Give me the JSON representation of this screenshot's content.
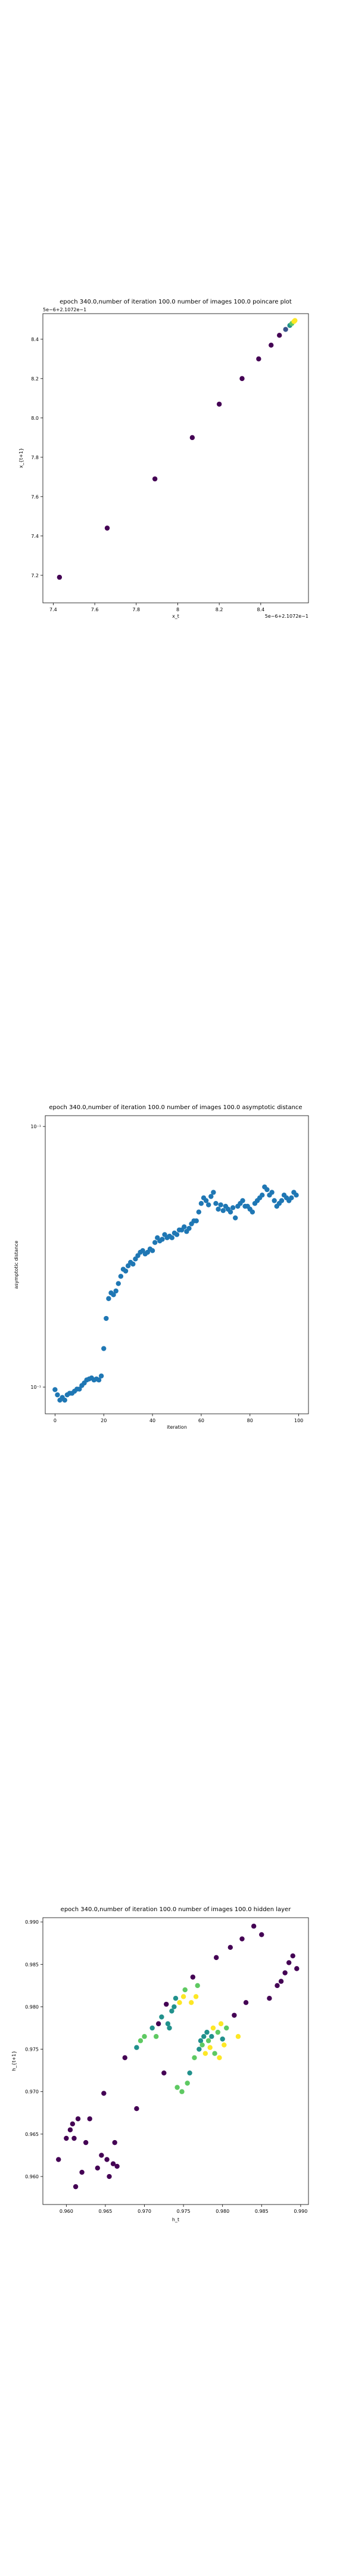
{
  "chart_data": [
    {
      "type": "scatter",
      "title": "epoch 340.0,number of iteration 100.0 number of images 100.0 poincare plot",
      "xlabel": "x_t",
      "ylabel": "x_{t+1}",
      "x_offset_label": "5e−6+2.1072e−1",
      "y_offset_label": "5e−6+2.1072e−1",
      "xlim": [
        7.35,
        8.63
      ],
      "ylim": [
        7.06,
        8.53
      ],
      "xticks": [
        7.4,
        7.6,
        7.8,
        8.0,
        8.2,
        8.4
      ],
      "yticks": [
        7.2,
        7.4,
        7.6,
        7.8,
        8.0,
        8.2,
        8.4
      ],
      "points": [
        {
          "x": 7.43,
          "y": 7.19,
          "color": "#440154"
        },
        {
          "x": 7.66,
          "y": 7.44,
          "color": "#440154"
        },
        {
          "x": 7.89,
          "y": 7.69,
          "color": "#440154"
        },
        {
          "x": 8.07,
          "y": 7.9,
          "color": "#440154"
        },
        {
          "x": 8.2,
          "y": 8.07,
          "color": "#440154"
        },
        {
          "x": 8.31,
          "y": 8.2,
          "color": "#440154"
        },
        {
          "x": 8.39,
          "y": 8.3,
          "color": "#440154"
        },
        {
          "x": 8.45,
          "y": 8.37,
          "color": "#440154"
        },
        {
          "x": 8.49,
          "y": 8.42,
          "color": "#440154"
        },
        {
          "x": 8.52,
          "y": 8.45,
          "color": "#3b528b"
        },
        {
          "x": 8.54,
          "y": 8.47,
          "color": "#21918c"
        },
        {
          "x": 8.55,
          "y": 8.48,
          "color": "#5ec962"
        },
        {
          "x": 8.56,
          "y": 8.49,
          "color": "#fde725"
        },
        {
          "x": 8.565,
          "y": 8.495,
          "color": "#fde725"
        }
      ]
    },
    {
      "type": "scatter",
      "title": "epoch 340.0,number of iteration 100.0  number of images 100.0 asymptotic distance",
      "xlabel": "iteration",
      "ylabel": "asymptotic distance",
      "yscale": "log",
      "xlim": [
        -4,
        104
      ],
      "ylim": [
        0.055,
        0.145
      ],
      "xticks": [
        0,
        20,
        40,
        60,
        80,
        100
      ],
      "yticks": [
        0.06,
        0.14
      ],
      "ytick_labels": [
        "10⁻¹",
        "10⁻¹"
      ],
      "color": "#1f77b4",
      "points": [
        {
          "x": 0,
          "y": 0.0595
        },
        {
          "x": 1,
          "y": 0.0585
        },
        {
          "x": 2,
          "y": 0.0575
        },
        {
          "x": 3,
          "y": 0.058
        },
        {
          "x": 4,
          "y": 0.0575
        },
        {
          "x": 5,
          "y": 0.0585
        },
        {
          "x": 6,
          "y": 0.0588
        },
        {
          "x": 7,
          "y": 0.0588
        },
        {
          "x": 8,
          "y": 0.0592
        },
        {
          "x": 9,
          "y": 0.0596
        },
        {
          "x": 10,
          "y": 0.0596
        },
        {
          "x": 11,
          "y": 0.0603
        },
        {
          "x": 12,
          "y": 0.0608
        },
        {
          "x": 13,
          "y": 0.0614
        },
        {
          "x": 14,
          "y": 0.0616
        },
        {
          "x": 15,
          "y": 0.0618
        },
        {
          "x": 16,
          "y": 0.0614
        },
        {
          "x": 17,
          "y": 0.0616
        },
        {
          "x": 18,
          "y": 0.0614
        },
        {
          "x": 19,
          "y": 0.0622
        },
        {
          "x": 20,
          "y": 0.068
        },
        {
          "x": 21,
          "y": 0.075
        },
        {
          "x": 22,
          "y": 0.08
        },
        {
          "x": 23,
          "y": 0.0815
        },
        {
          "x": 24,
          "y": 0.081
        },
        {
          "x": 25,
          "y": 0.082
        },
        {
          "x": 26,
          "y": 0.084
        },
        {
          "x": 27,
          "y": 0.086
        },
        {
          "x": 28,
          "y": 0.088
        },
        {
          "x": 29,
          "y": 0.0875
        },
        {
          "x": 30,
          "y": 0.089
        },
        {
          "x": 31,
          "y": 0.09
        },
        {
          "x": 32,
          "y": 0.0895
        },
        {
          "x": 33,
          "y": 0.091
        },
        {
          "x": 34,
          "y": 0.092
        },
        {
          "x": 35,
          "y": 0.093
        },
        {
          "x": 36,
          "y": 0.0935
        },
        {
          "x": 37,
          "y": 0.0925
        },
        {
          "x": 38,
          "y": 0.093
        },
        {
          "x": 39,
          "y": 0.094
        },
        {
          "x": 40,
          "y": 0.0935
        },
        {
          "x": 41,
          "y": 0.096
        },
        {
          "x": 42,
          "y": 0.0975
        },
        {
          "x": 43,
          "y": 0.0965
        },
        {
          "x": 44,
          "y": 0.097
        },
        {
          "x": 45,
          "y": 0.0985
        },
        {
          "x": 46,
          "y": 0.0975
        },
        {
          "x": 47,
          "y": 0.098
        },
        {
          "x": 48,
          "y": 0.0975
        },
        {
          "x": 49,
          "y": 0.099
        },
        {
          "x": 50,
          "y": 0.0985
        },
        {
          "x": 51,
          "y": 0.1
        },
        {
          "x": 52,
          "y": 0.1
        },
        {
          "x": 53,
          "y": 0.101
        },
        {
          "x": 54,
          "y": 0.0995
        },
        {
          "x": 55,
          "y": 0.1005
        },
        {
          "x": 56,
          "y": 0.102
        },
        {
          "x": 57,
          "y": 0.103
        },
        {
          "x": 58,
          "y": 0.103
        },
        {
          "x": 59,
          "y": 0.106
        },
        {
          "x": 60,
          "y": 0.109
        },
        {
          "x": 61,
          "y": 0.111
        },
        {
          "x": 62,
          "y": 0.11
        },
        {
          "x": 63,
          "y": 0.1085
        },
        {
          "x": 64,
          "y": 0.1115
        },
        {
          "x": 65,
          "y": 0.113
        },
        {
          "x": 66,
          "y": 0.109
        },
        {
          "x": 67,
          "y": 0.107
        },
        {
          "x": 68,
          "y": 0.1085
        },
        {
          "x": 69,
          "y": 0.1065
        },
        {
          "x": 70,
          "y": 0.108
        },
        {
          "x": 71,
          "y": 0.107
        },
        {
          "x": 72,
          "y": 0.106
        },
        {
          "x": 73,
          "y": 0.1075
        },
        {
          "x": 74,
          "y": 0.104
        },
        {
          "x": 75,
          "y": 0.108
        },
        {
          "x": 76,
          "y": 0.109
        },
        {
          "x": 77,
          "y": 0.11
        },
        {
          "x": 78,
          "y": 0.108
        },
        {
          "x": 79,
          "y": 0.108
        },
        {
          "x": 80,
          "y": 0.107
        },
        {
          "x": 81,
          "y": 0.106
        },
        {
          "x": 82,
          "y": 0.109
        },
        {
          "x": 83,
          "y": 0.11
        },
        {
          "x": 84,
          "y": 0.111
        },
        {
          "x": 85,
          "y": 0.112
        },
        {
          "x": 86,
          "y": 0.115
        },
        {
          "x": 87,
          "y": 0.114
        },
        {
          "x": 88,
          "y": 0.112
        },
        {
          "x": 89,
          "y": 0.113
        },
        {
          "x": 90,
          "y": 0.11
        },
        {
          "x": 91,
          "y": 0.108
        },
        {
          "x": 92,
          "y": 0.109
        },
        {
          "x": 93,
          "y": 0.11
        },
        {
          "x": 94,
          "y": 0.112
        },
        {
          "x": 95,
          "y": 0.111
        },
        {
          "x": 96,
          "y": 0.11
        },
        {
          "x": 97,
          "y": 0.111
        },
        {
          "x": 98,
          "y": 0.113
        },
        {
          "x": 99,
          "y": 0.112
        }
      ]
    },
    {
      "type": "scatter",
      "title": "epoch 340.0,number of iteration 100.0  number of images 100.0 hidden layer",
      "xlabel": "h_t",
      "ylabel": "h_{t+1}",
      "xlim": [
        0.957,
        0.991
      ],
      "ylim": [
        0.9567,
        0.9905
      ],
      "xticks": [
        0.96,
        0.965,
        0.97,
        0.975,
        0.98,
        0.985,
        0.99
      ],
      "yticks": [
        0.96,
        0.965,
        0.97,
        0.975,
        0.98,
        0.985,
        0.99
      ],
      "tick_labels": [
        "0.960",
        "0.965",
        "0.970",
        "0.975",
        "0.980",
        "0.985",
        "0.990"
      ],
      "points": [
        {
          "x": 0.959,
          "y": 0.962,
          "color": "#440154"
        },
        {
          "x": 0.96,
          "y": 0.9645,
          "color": "#440154"
        },
        {
          "x": 0.9605,
          "y": 0.9655,
          "color": "#440154"
        },
        {
          "x": 0.9608,
          "y": 0.9662,
          "color": "#440154"
        },
        {
          "x": 0.961,
          "y": 0.9645,
          "color": "#440154"
        },
        {
          "x": 0.9612,
          "y": 0.9588,
          "color": "#440154"
        },
        {
          "x": 0.9615,
          "y": 0.9668,
          "color": "#440154"
        },
        {
          "x": 0.962,
          "y": 0.9605,
          "color": "#440154"
        },
        {
          "x": 0.9625,
          "y": 0.964,
          "color": "#440154"
        },
        {
          "x": 0.963,
          "y": 0.9668,
          "color": "#440154"
        },
        {
          "x": 0.964,
          "y": 0.961,
          "color": "#440154"
        },
        {
          "x": 0.9645,
          "y": 0.9625,
          "color": "#440154"
        },
        {
          "x": 0.9648,
          "y": 0.9698,
          "color": "#440154"
        },
        {
          "x": 0.9652,
          "y": 0.962,
          "color": "#440154"
        },
        {
          "x": 0.9655,
          "y": 0.96,
          "color": "#440154"
        },
        {
          "x": 0.966,
          "y": 0.9615,
          "color": "#440154"
        },
        {
          "x": 0.9662,
          "y": 0.964,
          "color": "#440154"
        },
        {
          "x": 0.9665,
          "y": 0.9612,
          "color": "#440154"
        },
        {
          "x": 0.9675,
          "y": 0.974,
          "color": "#440154"
        },
        {
          "x": 0.969,
          "y": 0.968,
          "color": "#440154"
        },
        {
          "x": 0.969,
          "y": 0.9752,
          "color": "#21918c"
        },
        {
          "x": 0.9695,
          "y": 0.976,
          "color": "#5ec962"
        },
        {
          "x": 0.97,
          "y": 0.9765,
          "color": "#5ec962"
        },
        {
          "x": 0.971,
          "y": 0.9775,
          "color": "#21918c"
        },
        {
          "x": 0.9715,
          "y": 0.9765,
          "color": "#5ec962"
        },
        {
          "x": 0.9718,
          "y": 0.978,
          "color": "#440154"
        },
        {
          "x": 0.9722,
          "y": 0.9788,
          "color": "#21918c"
        },
        {
          "x": 0.9725,
          "y": 0.9722,
          "color": "#440154"
        },
        {
          "x": 0.9728,
          "y": 0.9803,
          "color": "#440154"
        },
        {
          "x": 0.973,
          "y": 0.978,
          "color": "#21918c"
        },
        {
          "x": 0.9732,
          "y": 0.9775,
          "color": "#21918c"
        },
        {
          "x": 0.9735,
          "y": 0.9795,
          "color": "#21918c"
        },
        {
          "x": 0.9738,
          "y": 0.98,
          "color": "#21918c"
        },
        {
          "x": 0.974,
          "y": 0.981,
          "color": "#21918c"
        },
        {
          "x": 0.9742,
          "y": 0.9705,
          "color": "#5ec962"
        },
        {
          "x": 0.9745,
          "y": 0.9805,
          "color": "#fde725"
        },
        {
          "x": 0.9748,
          "y": 0.97,
          "color": "#5ec962"
        },
        {
          "x": 0.975,
          "y": 0.9812,
          "color": "#fde725"
        },
        {
          "x": 0.9752,
          "y": 0.982,
          "color": "#5ec962"
        },
        {
          "x": 0.9755,
          "y": 0.971,
          "color": "#5ec962"
        },
        {
          "x": 0.9758,
          "y": 0.9722,
          "color": "#21918c"
        },
        {
          "x": 0.976,
          "y": 0.9805,
          "color": "#fde725"
        },
        {
          "x": 0.9762,
          "y": 0.9835,
          "color": "#440154"
        },
        {
          "x": 0.9764,
          "y": 0.974,
          "color": "#5ec962"
        },
        {
          "x": 0.9766,
          "y": 0.9812,
          "color": "#fde725"
        },
        {
          "x": 0.9768,
          "y": 0.9825,
          "color": "#5ec962"
        },
        {
          "x": 0.977,
          "y": 0.975,
          "color": "#21918c"
        },
        {
          "x": 0.9772,
          "y": 0.976,
          "color": "#21918c"
        },
        {
          "x": 0.9774,
          "y": 0.9755,
          "color": "#5ec962"
        },
        {
          "x": 0.9776,
          "y": 0.9765,
          "color": "#21918c"
        },
        {
          "x": 0.9778,
          "y": 0.9745,
          "color": "#fde725"
        },
        {
          "x": 0.978,
          "y": 0.977,
          "color": "#21918c"
        },
        {
          "x": 0.9782,
          "y": 0.976,
          "color": "#5ec962"
        },
        {
          "x": 0.9784,
          "y": 0.9752,
          "color": "#fde725"
        },
        {
          "x": 0.9786,
          "y": 0.9765,
          "color": "#21918c"
        },
        {
          "x": 0.9788,
          "y": 0.9775,
          "color": "#fde725"
        },
        {
          "x": 0.979,
          "y": 0.9745,
          "color": "#5ec962"
        },
        {
          "x": 0.9792,
          "y": 0.9858,
          "color": "#440154"
        },
        {
          "x": 0.9794,
          "y": 0.977,
          "color": "#5ec962"
        },
        {
          "x": 0.9796,
          "y": 0.974,
          "color": "#fde725"
        },
        {
          "x": 0.9798,
          "y": 0.978,
          "color": "#fde725"
        },
        {
          "x": 0.98,
          "y": 0.9762,
          "color": "#21918c"
        },
        {
          "x": 0.9802,
          "y": 0.9755,
          "color": "#fde725"
        },
        {
          "x": 0.9805,
          "y": 0.9775,
          "color": "#5ec962"
        },
        {
          "x": 0.981,
          "y": 0.987,
          "color": "#440154"
        },
        {
          "x": 0.9815,
          "y": 0.979,
          "color": "#440154"
        },
        {
          "x": 0.982,
          "y": 0.9765,
          "color": "#fde725"
        },
        {
          "x": 0.9825,
          "y": 0.988,
          "color": "#440154"
        },
        {
          "x": 0.983,
          "y": 0.9805,
          "color": "#440154"
        },
        {
          "x": 0.984,
          "y": 0.9895,
          "color": "#440154"
        },
        {
          "x": 0.985,
          "y": 0.9885,
          "color": "#440154"
        },
        {
          "x": 0.986,
          "y": 0.981,
          "color": "#440154"
        },
        {
          "x": 0.987,
          "y": 0.9825,
          "color": "#440154"
        },
        {
          "x": 0.9875,
          "y": 0.983,
          "color": "#440154"
        },
        {
          "x": 0.988,
          "y": 0.984,
          "color": "#440154"
        },
        {
          "x": 0.9885,
          "y": 0.9852,
          "color": "#440154"
        },
        {
          "x": 0.989,
          "y": 0.986,
          "color": "#440154"
        },
        {
          "x": 0.9895,
          "y": 0.9845,
          "color": "#440154"
        }
      ]
    }
  ]
}
